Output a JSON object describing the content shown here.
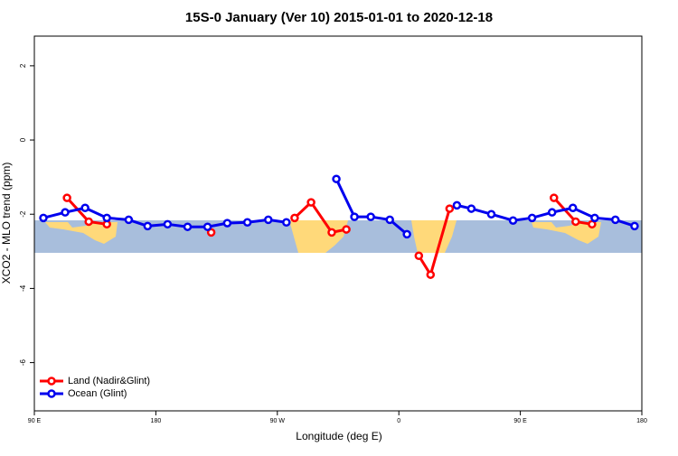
{
  "chart_data": {
    "type": "line",
    "title": "15S-0 January (Ver 10)   2015-01-01 to 2020-12-18",
    "x_label": "Longitude (deg E)",
    "y_label": "XCO2 - MLO trend (ppm)",
    "xlim": [
      90,
      540
    ],
    "ylim": [
      -7.3,
      2.8
    ],
    "xticks": [
      {
        "value": 90,
        "label": "90 E"
      },
      {
        "value": 180,
        "label": "180"
      },
      {
        "value": 270,
        "label": "90 W"
      },
      {
        "value": 360,
        "label": "0"
      },
      {
        "value": 450,
        "label": "90 E"
      },
      {
        "value": 540,
        "label": "180"
      }
    ],
    "yticks": [
      2,
      0,
      -2,
      -4,
      -6
    ],
    "legend": "bottom-left",
    "series": [
      {
        "name": "Land (Nadir&Glint)",
        "color": "#ff0000",
        "x": [
          114.2,
          130.3,
          143.7,
          null,
          221.0,
          null,
          282.8,
          295.0,
          310.3,
          321.1,
          null,
          374.8,
          383.5,
          397.6,
          null,
          474.9,
          491.0,
          503.1
        ],
        "values": [
          -1.56,
          -2.2,
          -2.27,
          null,
          -2.49,
          null,
          -2.1,
          -1.68,
          -2.49,
          -2.41,
          null,
          -3.12,
          -3.63,
          -1.85,
          null,
          -1.56,
          -2.2,
          -2.27
        ]
      },
      {
        "name": "Ocean (Glint)",
        "color": "#0000ee",
        "x": [
          96.7,
          112.8,
          127.6,
          143.7,
          159.9,
          173.9,
          188.7,
          203.5,
          218.3,
          232.9,
          247.8,
          263.3,
          276.7,
          null,
          313.7,
          327.1,
          339.2,
          353.3,
          366.0,
          null,
          403.0,
          413.7,
          428.5,
          444.6,
          458.7,
          473.5,
          488.9,
          505.1,
          520.4,
          534.6
        ],
        "values": [
          -2.1,
          -1.95,
          -1.83,
          -2.1,
          -2.15,
          -2.32,
          -2.27,
          -2.34,
          -2.34,
          -2.24,
          -2.22,
          -2.15,
          -2.22,
          null,
          -1.05,
          -2.07,
          -2.07,
          -2.15,
          -2.54,
          null,
          -1.76,
          -1.85,
          -2.0,
          -2.17,
          -2.1,
          -1.95,
          -1.83,
          -2.1,
          -2.15,
          -2.32
        ]
      }
    ]
  }
}
